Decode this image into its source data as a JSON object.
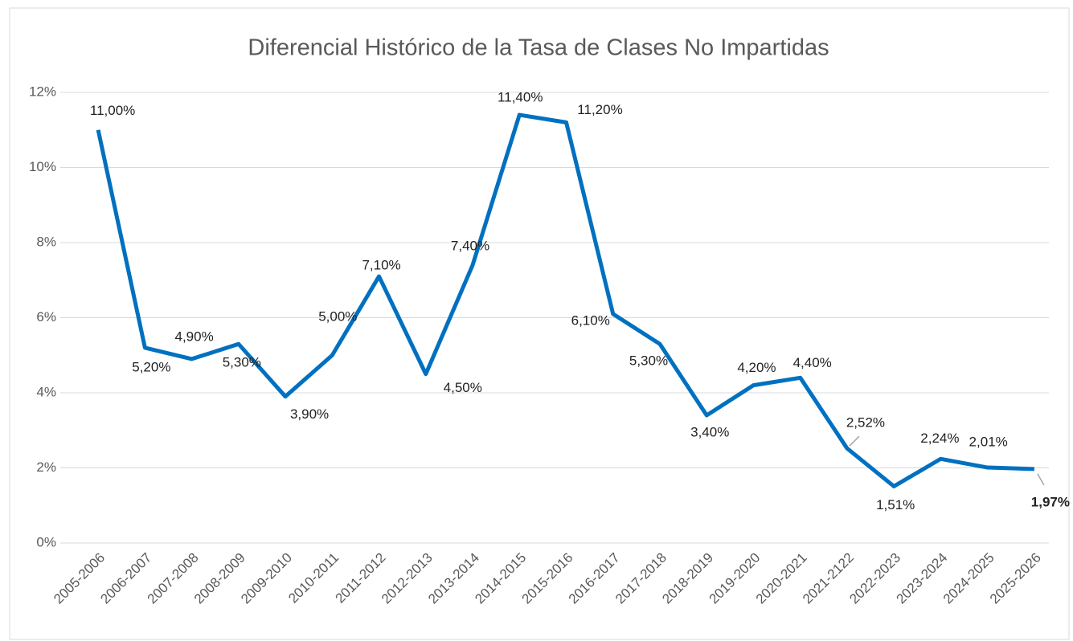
{
  "chart_data": {
    "type": "line",
    "title": "Diferencial Histórico de la Tasa de Clases No Impartidas",
    "categories": [
      "2005-2006",
      "2006-2007",
      "2007-2008",
      "2008-2009",
      "2009-2010",
      "2010-2011",
      "2011-2012",
      "2012-2013",
      "2013-2014",
      "2014-2015",
      "2015-2016",
      "2016-2017",
      "2017-2018",
      "2018-2019",
      "2019-2020",
      "2020-2021",
      "2021-2122",
      "2022-2023",
      "2023-2024",
      "2024-2025",
      "2025-2026"
    ],
    "series": [
      {
        "name": "Tasa",
        "color": "#0070c0",
        "values": [
          11.0,
          5.2,
          4.9,
          5.3,
          3.9,
          5.0,
          7.1,
          4.5,
          7.4,
          11.4,
          11.2,
          6.1,
          5.3,
          3.4,
          4.2,
          4.4,
          2.52,
          1.51,
          2.24,
          2.01,
          1.97
        ],
        "value_labels": [
          "11,00%",
          "5,20%",
          "4,90%",
          "5,30%",
          "3,90%",
          "5,00%",
          "7,10%",
          "4,50%",
          "7,40%",
          "11,40%",
          "11,20%",
          "6,10%",
          "5,30%",
          "3,40%",
          "4,20%",
          "4,40%",
          "2,52%",
          "1,51%",
          "2,24%",
          "2,01%",
          "1,97%"
        ]
      }
    ],
    "highlight": {
      "index": 20,
      "color": "#c00000"
    },
    "ylim": [
      0,
      12
    ],
    "yticks": [
      {
        "value": 0,
        "label": "0%"
      },
      {
        "value": 2,
        "label": "2%"
      },
      {
        "value": 4,
        "label": "4%"
      },
      {
        "value": 6,
        "label": "6%"
      },
      {
        "value": 8,
        "label": "8%"
      },
      {
        "value": 10,
        "label": "10%"
      },
      {
        "value": 12,
        "label": "12%"
      }
    ],
    "grid": true
  }
}
